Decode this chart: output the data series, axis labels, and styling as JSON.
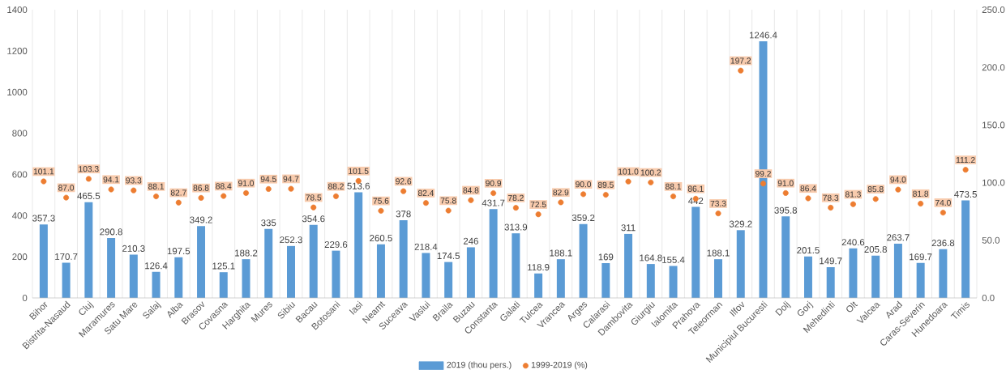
{
  "chart_data": {
    "type": "bar",
    "categories": [
      "Bihor",
      "Bistrita-Nasaud",
      "Cluj",
      "Maramures",
      "Satu Mare",
      "Salaj",
      "Alba",
      "Brasov",
      "Covasna",
      "Harghita",
      "Mures",
      "Sibiu",
      "Bacau",
      "Botosani",
      "Iasi",
      "Neamt",
      "Suceava",
      "Vaslui",
      "Braila",
      "Buzau",
      "Constanta",
      "Galati",
      "Tulcea",
      "Vrancea",
      "Arges",
      "Calarasi",
      "Dambovita",
      "Giurgiu",
      "Ialomita",
      "Prahova",
      "Teleorman",
      "Ilfov",
      "Municipiul Bucuresti",
      "Dolj",
      "Gorj",
      "Mehedinti",
      "Olt",
      "Valcea",
      "Arad",
      "Caras-Severin",
      "Hunedoara",
      "Timis"
    ],
    "series": [
      {
        "name": "2019 (thou pers.)",
        "color": "#5b9bd5",
        "values": [
          357.3,
          170.7,
          465.5,
          290.8,
          210.3,
          126.4,
          197.5,
          349.2,
          125.1,
          188.2,
          335,
          252.3,
          354.6,
          229.6,
          513.6,
          260.5,
          378,
          218.4,
          174.5,
          246,
          431.7,
          313.9,
          118.9,
          188.1,
          359.2,
          169,
          311,
          164.8,
          155.4,
          442,
          188.1,
          329.2,
          1246.4,
          395.8,
          201.5,
          149.7,
          240.6,
          205.8,
          263.7,
          169.7,
          236.8,
          473.5
        ],
        "value_labels": [
          "357.3",
          "170.7",
          "465.5",
          "290.8",
          "210.3",
          "126.4",
          "197.5",
          "349.2",
          "125.1",
          "188.2",
          "335",
          "252.3",
          "354.6",
          "229.6",
          "513.6",
          "260.5",
          "378",
          "218.4",
          "174.5",
          "246",
          "431.7",
          "313.9",
          "118.9",
          "188.1",
          "359.2",
          "169",
          "311",
          "164.8",
          "155.4",
          "442",
          "188.1",
          "329.2",
          "1246.4",
          "395.8",
          "201.5",
          "149.7",
          "240.6",
          "205.8",
          "263.7",
          "169.7",
          "236.8",
          "473.5"
        ]
      },
      {
        "name": "1999-2019 (%)",
        "type": "scatter",
        "axis": "y2",
        "color": "#ed7d31",
        "values": [
          101.1,
          87.0,
          103.3,
          94.1,
          93.3,
          88.1,
          82.7,
          86.8,
          88.4,
          91.0,
          94.5,
          94.7,
          78.5,
          88.2,
          101.5,
          75.6,
          92.6,
          82.4,
          75.8,
          84.8,
          90.9,
          78.2,
          72.5,
          82.9,
          90.0,
          89.5,
          101.0,
          100.2,
          88.1,
          86.1,
          73.3,
          197.2,
          99.2,
          91.0,
          86.4,
          78.3,
          81.3,
          85.8,
          94.0,
          81.8,
          74.0,
          111.2
        ],
        "value_labels": [
          "101.1",
          "87.0",
          "103.3",
          "94.1",
          "93.3",
          "88.1",
          "82.7",
          "86.8",
          "88.4",
          "91.0",
          "94.5",
          "94.7",
          "78.5",
          "88.2",
          "101.5",
          "75.6",
          "92.6",
          "82.4",
          "75.8",
          "84.8",
          "90.9",
          "78.2",
          "72.5",
          "82.9",
          "90.0",
          "89.5",
          "101.0",
          "100.2",
          "88.1",
          "86.1",
          "73.3",
          "197.2",
          "99.2",
          "91.0",
          "86.4",
          "78.3",
          "81.3",
          "85.8",
          "94.0",
          "81.8",
          "74.0",
          "111.2"
        ]
      }
    ],
    "ylim": [
      0,
      1400
    ],
    "yticks": [
      0,
      200,
      400,
      600,
      800,
      1000,
      1200,
      1400
    ],
    "y2lim": [
      0,
      250
    ],
    "y2ticks": [
      {
        "value": 0,
        "label": "0.0"
      },
      {
        "value": 50,
        "label": "50.0"
      },
      {
        "value": 100,
        "label": "100.0"
      },
      {
        "value": 150,
        "label": "150.0"
      },
      {
        "value": 200,
        "label": "200.0"
      },
      {
        "value": 250,
        "label": "250.0"
      }
    ],
    "grid": "x",
    "legend": "bottom"
  }
}
